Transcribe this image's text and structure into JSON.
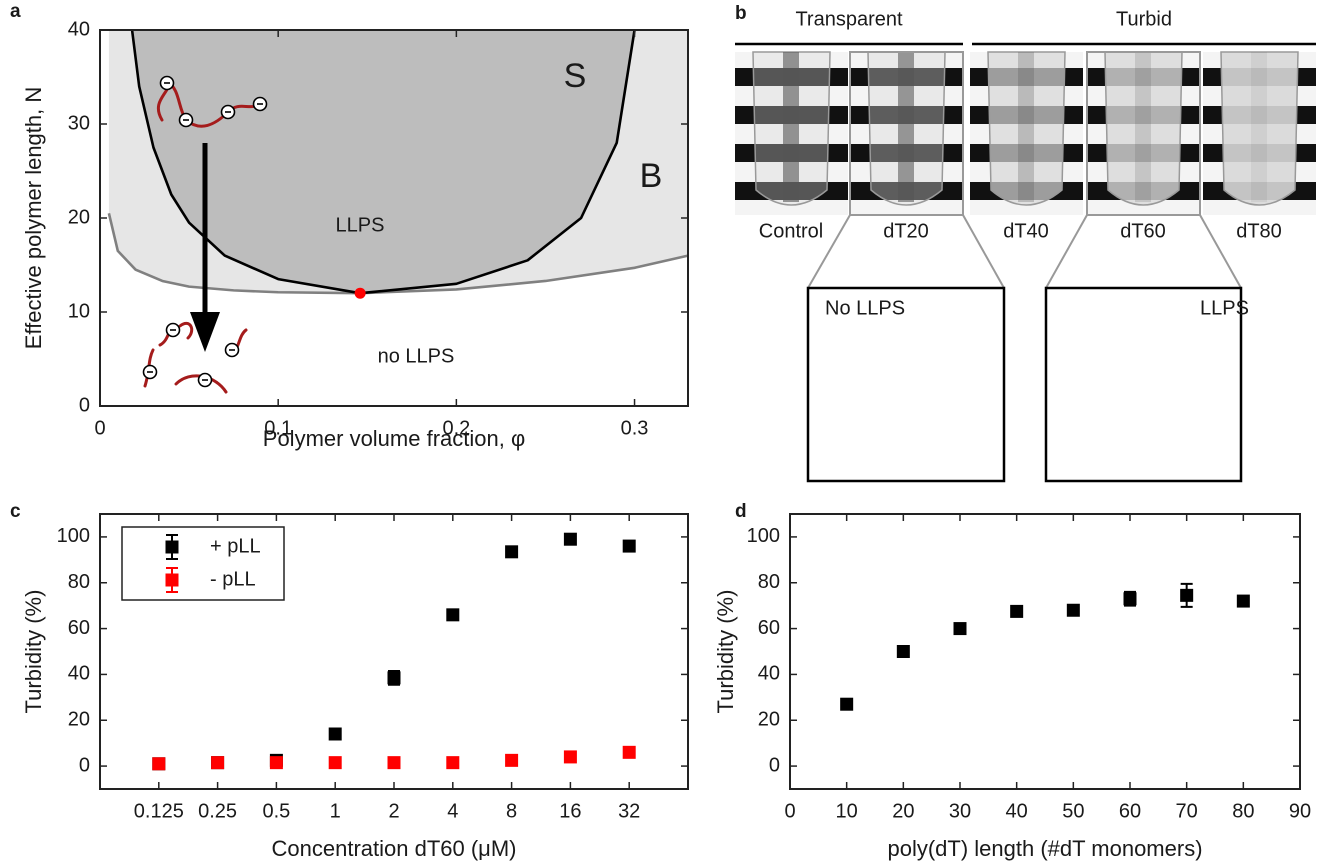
{
  "chart_data": [
    {
      "type": "phase-diagram",
      "panel_label": "a",
      "xlabel": "Polymer volume fraction, φ",
      "ylabel": "Effective polymer length, N",
      "xlim": [
        0,
        0.33
      ],
      "ylim": [
        0,
        40
      ],
      "xticks": [
        0,
        0.1,
        0.2,
        0.3
      ],
      "yticks": [
        0,
        10,
        20,
        30,
        40
      ],
      "curves": [
        {
          "color": "#808080",
          "fill": "#e6e6e6",
          "x": [
            0.005,
            0.01,
            0.02,
            0.035,
            0.05,
            0.075,
            0.1,
            0.146,
            0.2,
            0.25,
            0.3,
            0.33
          ],
          "y": [
            20.5,
            16.5,
            14.5,
            13.3,
            12.7,
            12.3,
            12.1,
            12,
            12.4,
            13.3,
            14.7,
            16
          ]
        },
        {
          "color": "#000000",
          "fill": "#bdbdbd",
          "x": [
            0.018,
            0.022,
            0.03,
            0.04,
            0.05,
            0.07,
            0.1,
            0.146,
            0.2,
            0.24,
            0.27,
            0.29,
            0.3
          ],
          "y": [
            40,
            34,
            27.5,
            22.5,
            19.5,
            16,
            13.5,
            12,
            13,
            15.5,
            20,
            28,
            40
          ]
        }
      ],
      "critical_point": {
        "x": 0.146,
        "y": 12,
        "color": "#ff0000"
      },
      "annotations": [
        "S",
        "B",
        "LLPS",
        "no LLPS"
      ]
    },
    {
      "type": "scatter",
      "panel_label": "c",
      "xlabel": "Concentration dT60 (μM)",
      "ylabel": "Turbidity (%)",
      "xscale": "log",
      "xlim": [
        0.0625,
        64
      ],
      "ylim": [
        -10,
        110
      ],
      "xticks": [
        0.125,
        0.25,
        0.5,
        1,
        2,
        4,
        8,
        16,
        32
      ],
      "yticks": [
        0,
        20,
        40,
        60,
        80,
        100
      ],
      "legend": "upper left",
      "x": [
        0.125,
        0.25,
        0.5,
        1,
        2,
        4,
        8,
        16,
        32
      ],
      "series": [
        {
          "name": "+ pLL",
          "color": "#000000",
          "values": [
            1,
            1.5,
            2.5,
            14,
            38.5,
            66,
            93.5,
            99,
            96
          ],
          "errors": [
            2,
            2,
            2,
            2,
            3,
            2,
            2,
            2,
            2
          ]
        },
        {
          "name": "- pLL",
          "color": "#ff0000",
          "values": [
            1,
            1.5,
            1.5,
            1.5,
            1.5,
            1.5,
            2.5,
            4,
            6
          ],
          "errors": [
            2,
            2,
            2,
            2,
            2,
            2,
            2,
            2,
            2
          ]
        }
      ]
    },
    {
      "type": "scatter",
      "panel_label": "d",
      "xlabel": "poly(dT) length (#dT monomers)",
      "ylabel": "Turbidity (%)",
      "xlim": [
        0,
        90
      ],
      "ylim": [
        -10,
        110
      ],
      "xticks": [
        0,
        10,
        20,
        30,
        40,
        50,
        60,
        70,
        80,
        90
      ],
      "yticks": [
        0,
        20,
        40,
        60,
        80,
        100
      ],
      "x": [
        10,
        20,
        30,
        40,
        50,
        60,
        70,
        80
      ],
      "series": [
        {
          "color": "#000000",
          "values": [
            27,
            50,
            60,
            67.5,
            68,
            73,
            74.5,
            72
          ],
          "errors": [
            2,
            2,
            2,
            2,
            2,
            3,
            5,
            2
          ]
        }
      ]
    }
  ],
  "panel_b": {
    "label": "b",
    "groups": [
      "Transparent",
      "Turbid"
    ],
    "samples": [
      "Control",
      "dT20",
      "dT40",
      "dT60",
      "dT80"
    ],
    "insets": [
      "No LLPS",
      "LLPS"
    ]
  }
}
